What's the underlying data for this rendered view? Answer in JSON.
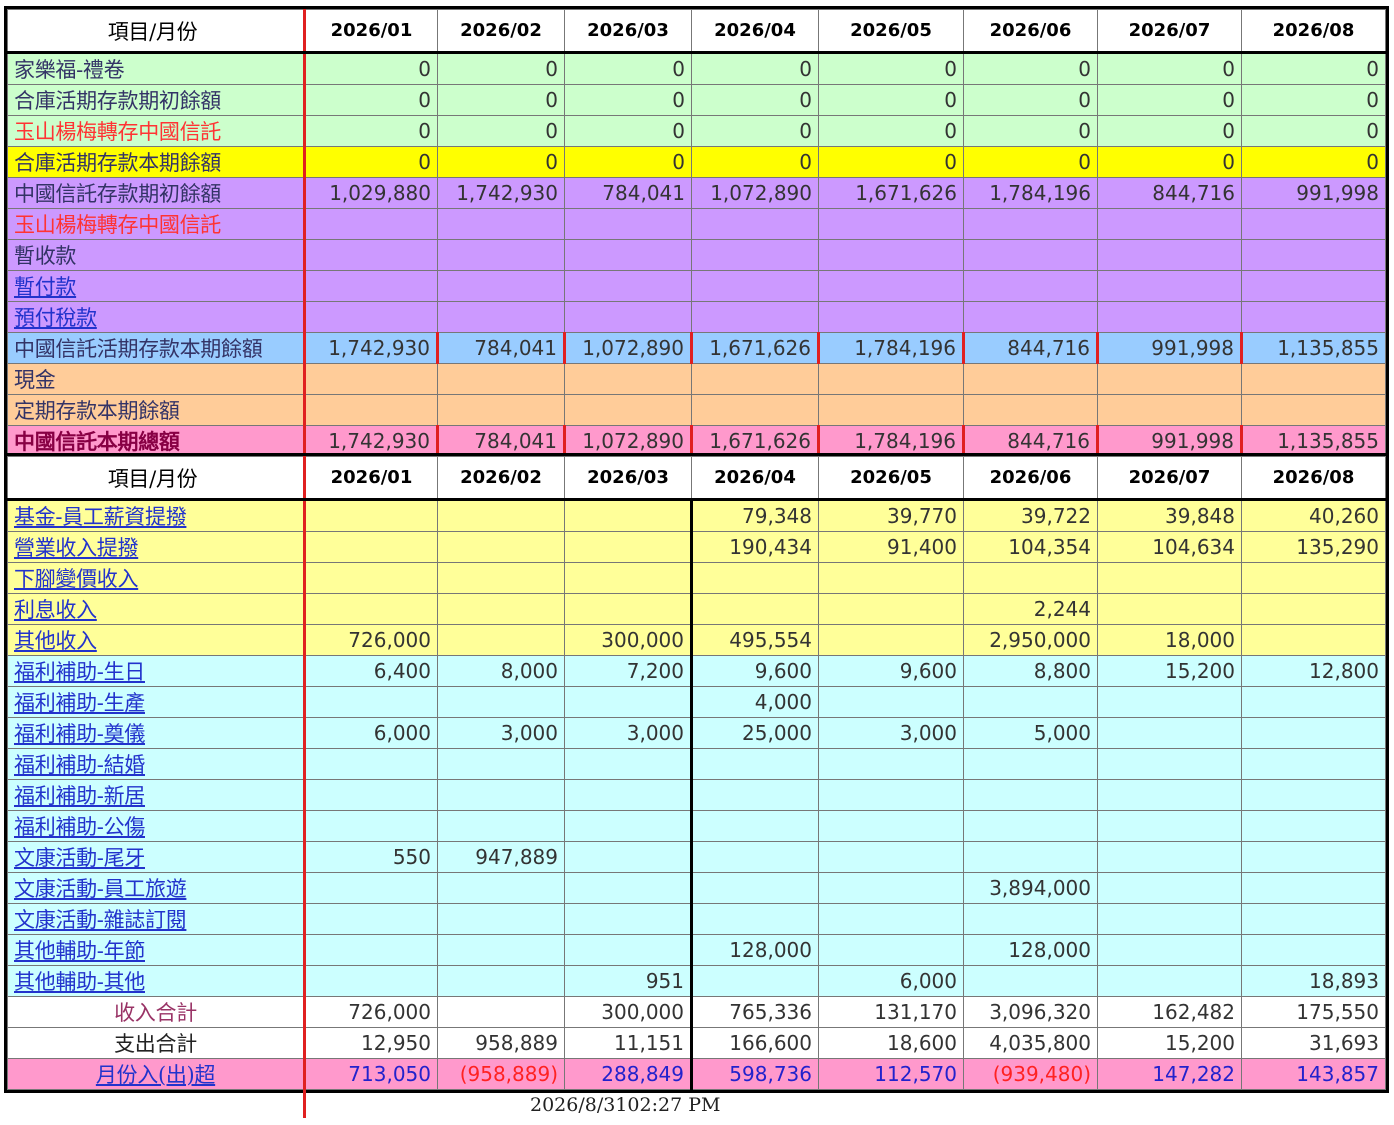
{
  "months": [
    "2026/01",
    "2026/02",
    "2026/03",
    "2026/04",
    "2026/05",
    "2026/06",
    "2026/07",
    "2026/08"
  ],
  "header_label": "項目/月份",
  "table1": [
    {
      "label": "家樂福-禮卷",
      "style": "green",
      "lc": "c-dark",
      "values": [
        "0",
        "0",
        "0",
        "0",
        "0",
        "0",
        "0",
        "0"
      ]
    },
    {
      "label": "合庫活期存款期初餘額",
      "style": "green",
      "lc": "c-dark",
      "values": [
        "0",
        "0",
        "0",
        "0",
        "0",
        "0",
        "0",
        "0"
      ]
    },
    {
      "label": "玉山楊梅轉存中國信託",
      "style": "green",
      "lc": "c-red",
      "values": [
        "0",
        "0",
        "0",
        "0",
        "0",
        "0",
        "0",
        "0"
      ]
    },
    {
      "label": "合庫活期存款本期餘額",
      "style": "yellow",
      "lc": "c-dark",
      "values": [
        "0",
        "0",
        "0",
        "0",
        "0",
        "0",
        "0",
        "0"
      ]
    },
    {
      "label": "中國信託存款期初餘額",
      "style": "purple",
      "lc": "c-dark",
      "values": [
        "1,029,880",
        "1,742,930",
        "784,041",
        "1,072,890",
        "1,671,626",
        "1,784,196",
        "844,716",
        "991,998"
      ]
    },
    {
      "label": "玉山楊梅轉存中國信託",
      "style": "purple",
      "lc": "c-red",
      "values": [
        "",
        "",
        "",
        "",
        "",
        "",
        "",
        ""
      ]
    },
    {
      "label": "暫收款",
      "style": "purple",
      "lc": "c-dark",
      "values": [
        "",
        "",
        "",
        "",
        "",
        "",
        "",
        ""
      ]
    },
    {
      "label": "暫付款",
      "style": "purple",
      "lc": "c-link",
      "values": [
        "",
        "",
        "",
        "",
        "",
        "",
        "",
        ""
      ]
    },
    {
      "label": "預付稅款",
      "style": "purple",
      "lc": "c-link",
      "values": [
        "",
        "",
        "",
        "",
        "",
        "",
        "",
        ""
      ]
    },
    {
      "label": "中國信託活期存款本期餘額",
      "style": "blue",
      "lc": "c-dark",
      "values": [
        "1,742,930",
        "784,041",
        "1,072,890",
        "1,671,626",
        "1,784,196",
        "844,716",
        "991,998",
        "1,135,855"
      ]
    },
    {
      "label": "現金",
      "style": "orange",
      "lc": "c-dark",
      "values": [
        "",
        "",
        "",
        "",
        "",
        "",
        "",
        ""
      ]
    },
    {
      "label": "定期存款本期餘額",
      "style": "orange",
      "lc": "c-dark",
      "values": [
        "",
        "",
        "",
        "",
        "",
        "",
        "",
        ""
      ]
    },
    {
      "label": "中國信託本期總額",
      "style": "pink",
      "lc": "c-darkred",
      "values": [
        "1,742,930",
        "784,041",
        "1,072,890",
        "1,671,626",
        "1,784,196",
        "844,716",
        "991,998",
        "1,135,855"
      ]
    }
  ],
  "table2": [
    {
      "label": "基金-員工薪資提撥",
      "style": "lyellow",
      "lc": "c-link",
      "values": [
        "",
        "",
        "",
        "79,348",
        "39,770",
        "39,722",
        "39,848",
        "40,260"
      ]
    },
    {
      "label": "營業收入提撥",
      "style": "lyellow",
      "lc": "c-link",
      "values": [
        "",
        "",
        "",
        "190,434",
        "91,400",
        "104,354",
        "104,634",
        "135,290"
      ]
    },
    {
      "label": "下腳變價收入",
      "style": "lyellow",
      "lc": "c-link",
      "values": [
        "",
        "",
        "",
        "",
        "",
        "",
        "",
        ""
      ]
    },
    {
      "label": "利息收入",
      "style": "lyellow",
      "lc": "c-link",
      "values": [
        "",
        "",
        "",
        "",
        "",
        "2,244",
        "",
        ""
      ]
    },
    {
      "label": "其他收入",
      "style": "lyellow",
      "lc": "c-link",
      "values": [
        "726,000",
        "",
        "300,000",
        "495,554",
        "",
        "2,950,000",
        "18,000",
        ""
      ]
    },
    {
      "label": "福利補助-生日",
      "style": "cyan",
      "lc": "c-link",
      "values": [
        "6,400",
        "8,000",
        "7,200",
        "9,600",
        "9,600",
        "8,800",
        "15,200",
        "12,800"
      ]
    },
    {
      "label": "福利補助-生產",
      "style": "cyan",
      "lc": "c-link",
      "values": [
        "",
        "",
        "",
        "4,000",
        "",
        "",
        "",
        ""
      ]
    },
    {
      "label": "福利補助-奠儀",
      "style": "cyan",
      "lc": "c-link",
      "values": [
        "6,000",
        "3,000",
        "3,000",
        "25,000",
        "3,000",
        "5,000",
        "",
        ""
      ]
    },
    {
      "label": "福利補助-結婚",
      "style": "cyan",
      "lc": "c-link",
      "values": [
        "",
        "",
        "",
        "",
        "",
        "",
        "",
        ""
      ]
    },
    {
      "label": "福利補助-新居",
      "style": "cyan",
      "lc": "c-link",
      "values": [
        "",
        "",
        "",
        "",
        "",
        "",
        "",
        ""
      ]
    },
    {
      "label": "福利補助-公傷",
      "style": "cyan",
      "lc": "c-link",
      "values": [
        "",
        "",
        "",
        "",
        "",
        "",
        "",
        ""
      ]
    },
    {
      "label": "文康活動-尾牙",
      "style": "cyan",
      "lc": "c-link",
      "values": [
        "550",
        "947,889",
        "",
        "",
        "",
        "",
        "",
        ""
      ]
    },
    {
      "label": "文康活動-員工旅遊",
      "style": "cyan",
      "lc": "c-link",
      "values": [
        "",
        "",
        "",
        "",
        "",
        "3,894,000",
        "",
        ""
      ]
    },
    {
      "label": "文康活動-雜誌訂閱",
      "style": "cyan",
      "lc": "c-link",
      "values": [
        "",
        "",
        "",
        "",
        "",
        "",
        "",
        ""
      ]
    },
    {
      "label": "其他輔助-年節",
      "style": "cyan",
      "lc": "c-link",
      "values": [
        "",
        "",
        "",
        "128,000",
        "",
        "128,000",
        "",
        ""
      ]
    },
    {
      "label": "其他輔助-其他",
      "style": "cyan",
      "lc": "c-link",
      "values": [
        "",
        "",
        "951",
        "",
        "6,000",
        "",
        "",
        "18,893"
      ]
    },
    {
      "label": "收入合計",
      "style": "white",
      "lc": "c-mag",
      "center": true,
      "values": [
        "726,000",
        "",
        "300,000",
        "765,336",
        "131,170",
        "3,096,320",
        "162,482",
        "175,550"
      ]
    },
    {
      "label": "支出合計",
      "style": "white",
      "lc": "c-black",
      "center": true,
      "values": [
        "12,950",
        "958,889",
        "11,151",
        "166,600",
        "18,600",
        "4,035,800",
        "15,200",
        "31,693"
      ]
    },
    {
      "label": "月份入(出)超",
      "style": "pink",
      "lc": "c-link",
      "center": true,
      "net": true,
      "values": [
        "713,050",
        "(958,889)",
        "288,849",
        "598,736",
        "112,570",
        "(939,480)",
        "147,282",
        "143,857"
      ]
    }
  ],
  "timestamp": "2026/8/3102:27 PM",
  "colors": {
    "grid_red": "#e02020",
    "green": "#ccffcc",
    "yellow": "#ffff00",
    "purple": "#cc99ff",
    "blue": "#99ccff",
    "orange": "#ffcc99",
    "pink": "#ff99cc",
    "light_yellow": "#ffff99",
    "cyan": "#ccffff"
  }
}
